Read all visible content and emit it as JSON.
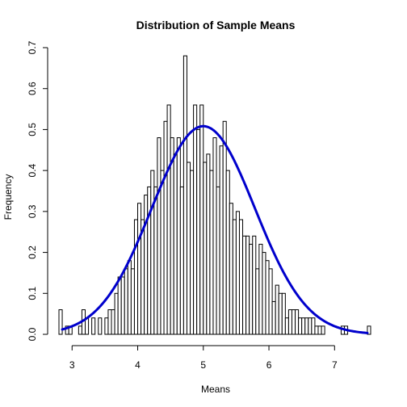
{
  "chart_data": {
    "type": "bar",
    "title": "Distribution of Sample Means",
    "xlabel": "Means",
    "ylabel": "Frequency",
    "xlim": [
      2.8,
      7.55
    ],
    "ylim": [
      0,
      0.7
    ],
    "x_ticks": [
      "3",
      "4",
      "5",
      "6",
      "7"
    ],
    "y_ticks": [
      "0.0",
      "0.1",
      "0.2",
      "0.3",
      "0.4",
      "0.5",
      "0.6",
      "0.7"
    ],
    "bin_start": 2.8,
    "bin_width": 0.05,
    "values": [
      0.06,
      0.0,
      0.02,
      0.02,
      0.0,
      0.0,
      0.02,
      0.06,
      0.04,
      0.0,
      0.04,
      0.0,
      0.04,
      0.0,
      0.04,
      0.06,
      0.06,
      0.1,
      0.14,
      0.14,
      0.16,
      0.18,
      0.16,
      0.28,
      0.32,
      0.28,
      0.34,
      0.36,
      0.4,
      0.36,
      0.48,
      0.4,
      0.52,
      0.56,
      0.48,
      0.44,
      0.48,
      0.36,
      0.68,
      0.42,
      0.4,
      0.56,
      0.5,
      0.56,
      0.42,
      0.44,
      0.4,
      0.48,
      0.36,
      0.46,
      0.52,
      0.4,
      0.32,
      0.28,
      0.3,
      0.28,
      0.24,
      0.24,
      0.22,
      0.24,
      0.16,
      0.22,
      0.2,
      0.18,
      0.16,
      0.08,
      0.12,
      0.1,
      0.1,
      0.04,
      0.06,
      0.06,
      0.06,
      0.04,
      0.04,
      0.04,
      0.04,
      0.04,
      0.02,
      0.02,
      0.02,
      0.0,
      0.0,
      0.0,
      0.0,
      0.0,
      0.02,
      0.02,
      0.0,
      0.0,
      0.0,
      0.0,
      0.0,
      0.0,
      0.02
    ],
    "curve": {
      "type": "normal-density",
      "mean": 5.0,
      "sd": 0.785,
      "x_range": [
        2.85,
        7.5
      ],
      "color": "#0000cc"
    }
  }
}
